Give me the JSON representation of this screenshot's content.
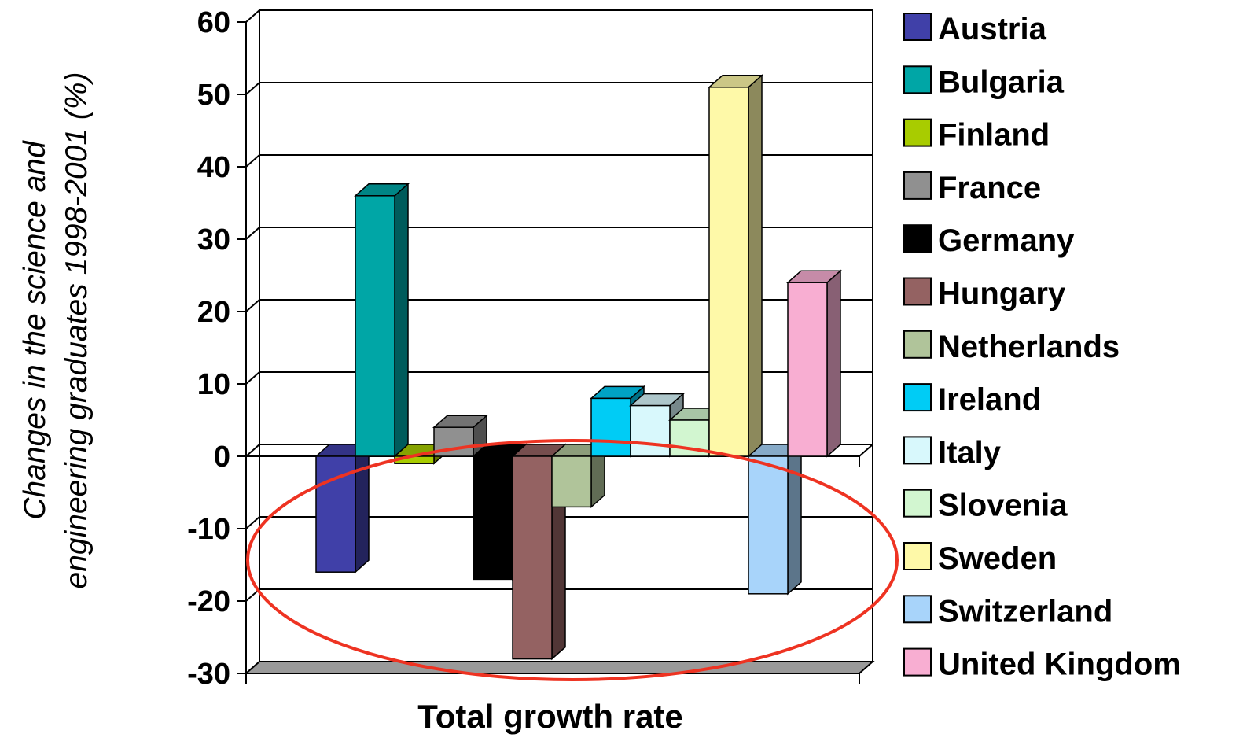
{
  "chart_data": {
    "type": "bar",
    "style": "3d-clustered-column",
    "categories": [
      "Total growth rate"
    ],
    "xlabel": "Total growth rate",
    "ylabel_lines": [
      "Changes in the science and",
      "engineering graduates 1998-2001 (%)"
    ],
    "ylim": [
      -30,
      60
    ],
    "yticks": [
      "60",
      "50",
      "40",
      "30",
      "20",
      "10",
      "0",
      "-10",
      "-20",
      "-30"
    ],
    "grid": true,
    "legend_position": "right",
    "series": [
      {
        "name": "Austria",
        "value": -16,
        "color": "#4040A8"
      },
      {
        "name": "Bulgaria",
        "value": 36,
        "color": "#00A6A6"
      },
      {
        "name": "Finland",
        "value": -1,
        "color": "#A8CC00"
      },
      {
        "name": "France",
        "value": 4,
        "color": "#909090"
      },
      {
        "name": "Germany",
        "value": -17,
        "color": "#000000"
      },
      {
        "name": "Hungary",
        "value": -28,
        "color": "#946262"
      },
      {
        "name": "Netherlands",
        "value": -7,
        "color": "#B0C49A"
      },
      {
        "name": "Ireland",
        "value": 8,
        "color": "#00CCF5"
      },
      {
        "name": "Italy",
        "value": 7,
        "color": "#D8F8FC"
      },
      {
        "name": "Slovenia",
        "value": 5,
        "color": "#D2F6D0"
      },
      {
        "name": "Sweden",
        "value": 51,
        "color": "#FEF9A8"
      },
      {
        "name": "Switzerland",
        "value": -19,
        "color": "#A8D4FA"
      },
      {
        "name": "United Kingdom",
        "value": 24,
        "color": "#F8AED2"
      }
    ],
    "annotation": {
      "shape": "ellipse",
      "color": "#EE3322",
      "highlights": "negative growth countries"
    }
  }
}
